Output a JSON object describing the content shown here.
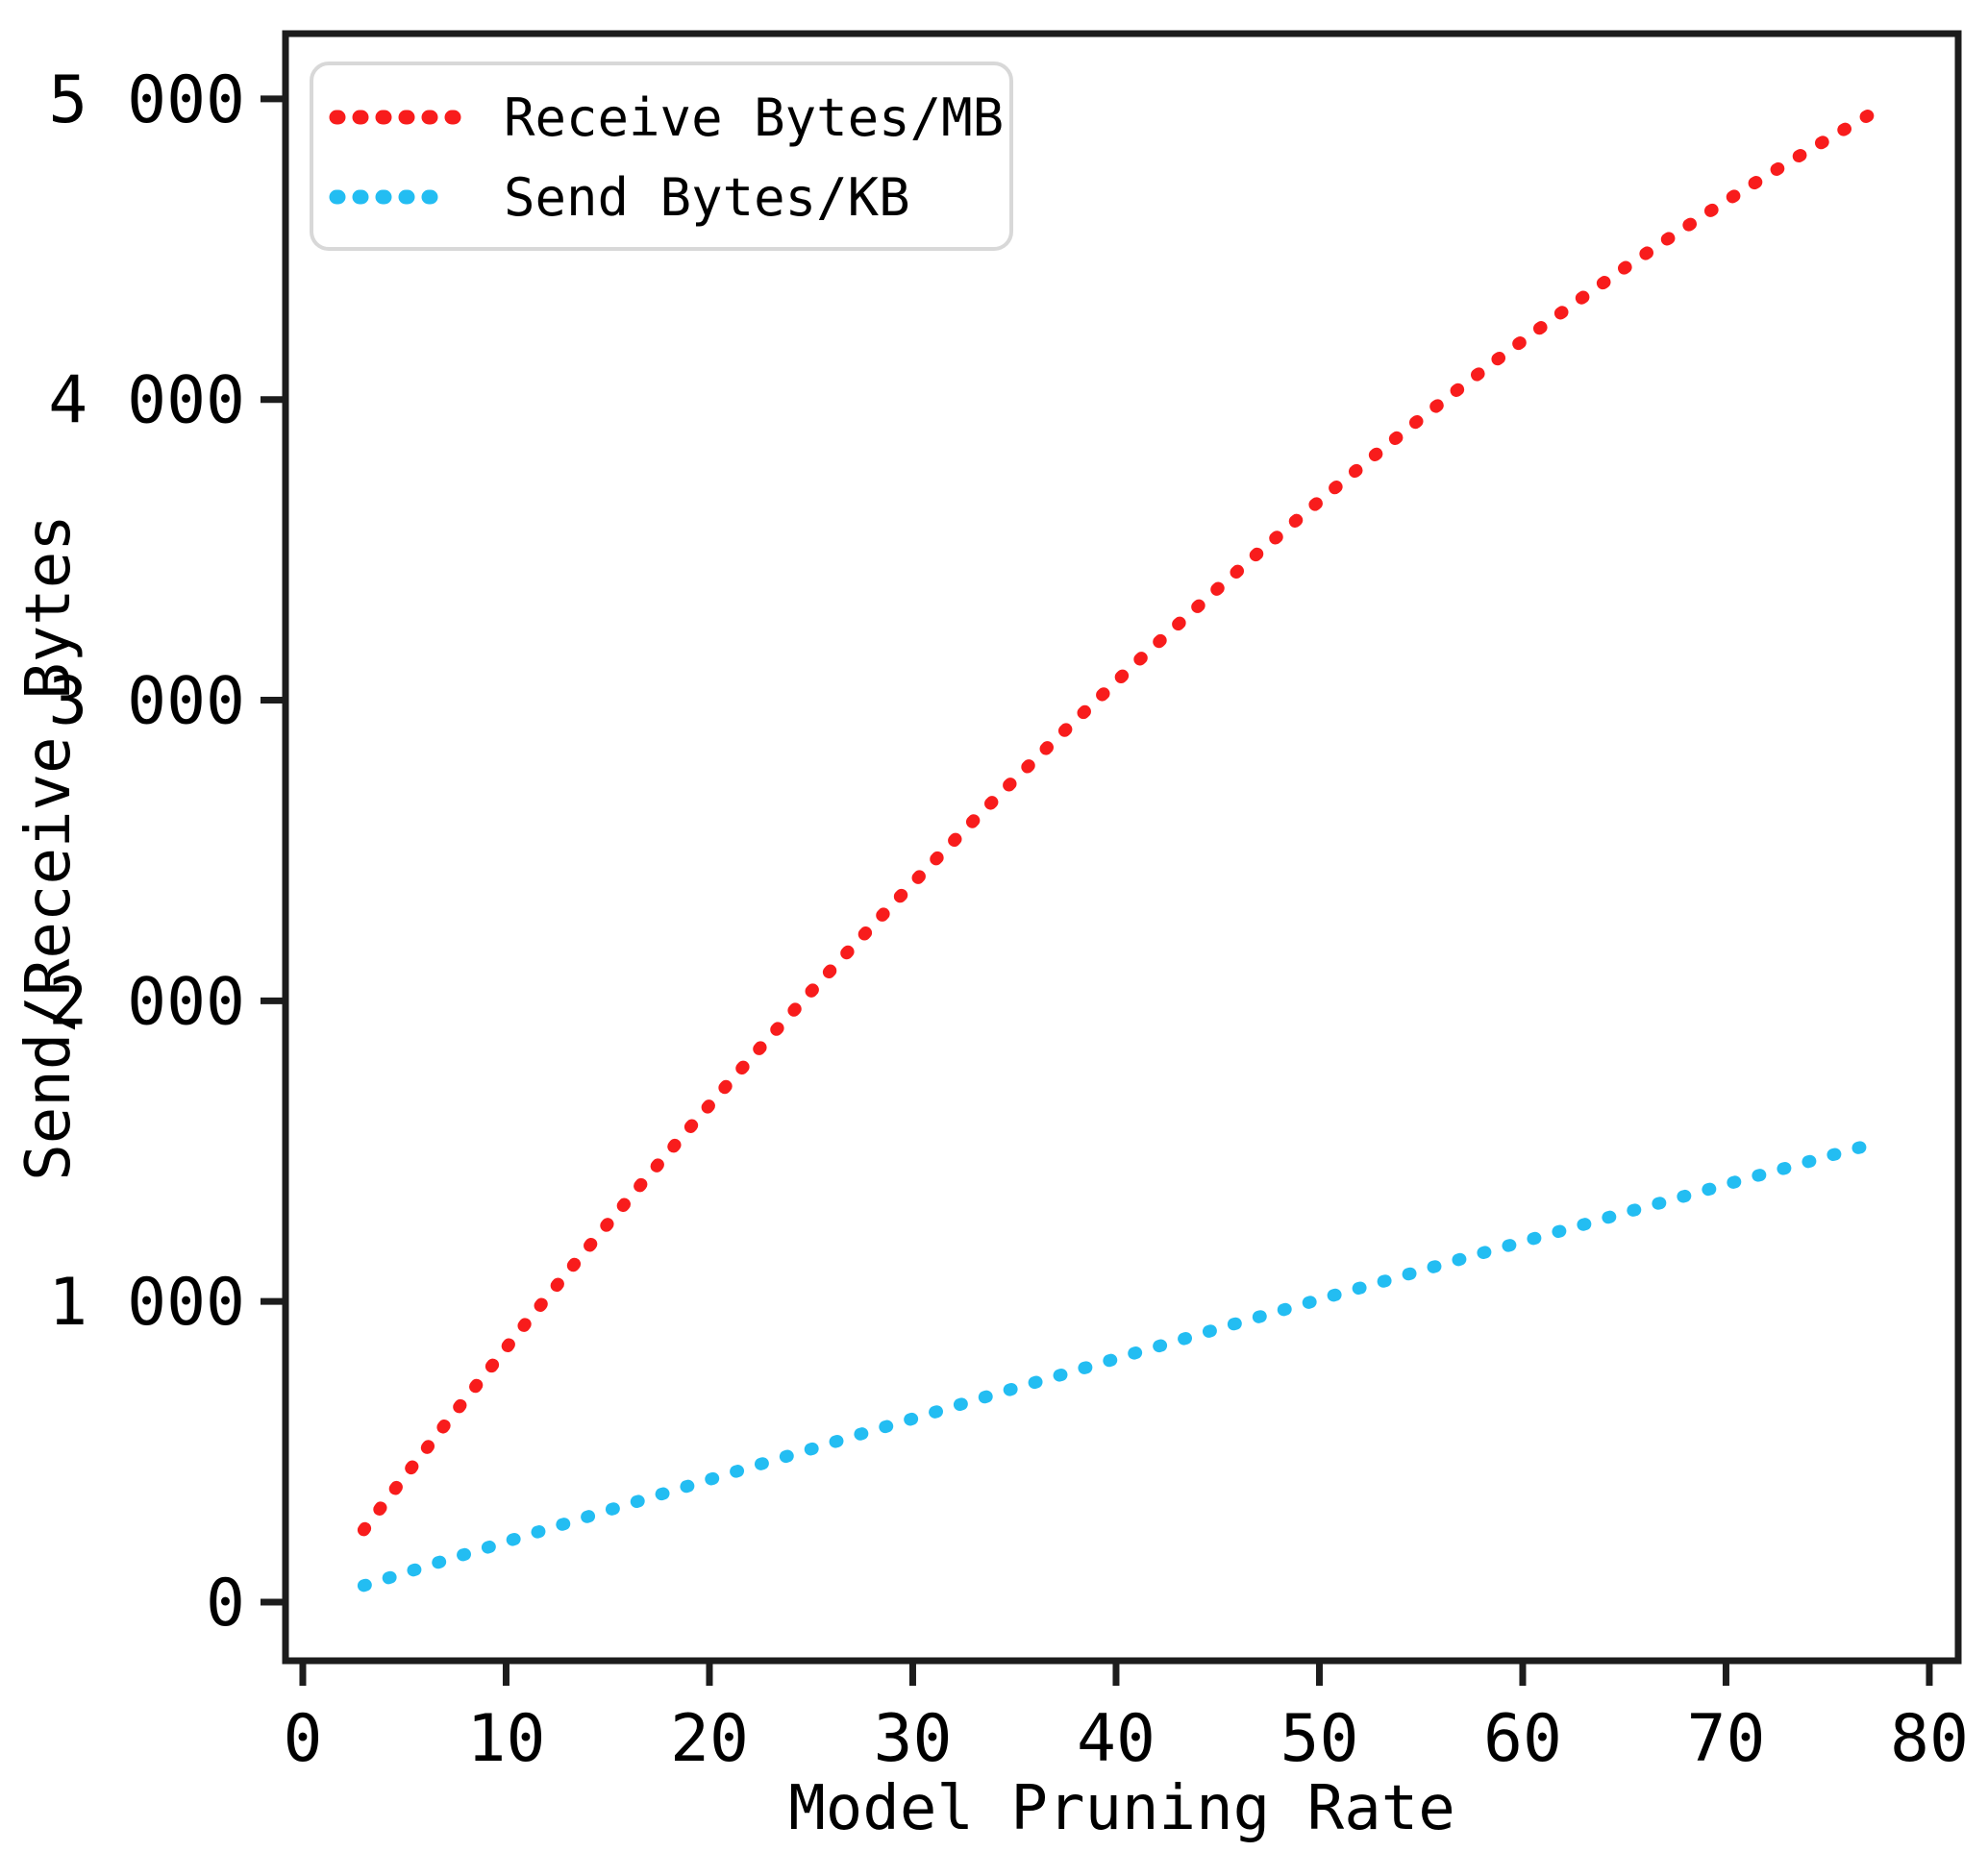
{
  "chart_data": {
    "type": "line",
    "title": "",
    "xlabel": "Model Pruning Rate",
    "ylabel": "Send/Receive Bytes",
    "xlim": [
      -0.85,
      81.42
    ],
    "ylim": [
      -195,
      5217
    ],
    "x_ticks": [
      0,
      10,
      20,
      30,
      40,
      50,
      60,
      70,
      80
    ],
    "x_tick_labels": [
      "0",
      "10",
      "20",
      "30",
      "40",
      "50",
      "60",
      "70",
      "80"
    ],
    "y_ticks": [
      0,
      1000,
      2000,
      3000,
      4000,
      5000
    ],
    "y_tick_labels": [
      "0",
      "1 000",
      "2 000",
      "3 000",
      "4 000",
      "5 000"
    ],
    "grid": false,
    "legend_position": "upper-left",
    "line_style": "dotted",
    "series": [
      {
        "name": "Receive Bytes/MB",
        "color": "#f81c1c",
        "style": "dotted",
        "x": [
          3,
          5,
          7,
          9,
          11,
          13,
          15,
          17,
          19,
          21,
          23,
          25,
          27,
          29,
          31,
          33,
          35,
          37,
          39,
          41,
          43,
          45,
          47,
          49,
          51,
          53,
          55,
          57,
          59,
          61,
          63,
          65,
          67,
          69,
          71,
          73,
          75,
          77
        ],
        "y": [
          240,
          417,
          590,
          760,
          930,
          1095,
          1258,
          1418,
          1575,
          1730,
          1882,
          2031,
          2177,
          2320,
          2461,
          2600,
          2735,
          2868,
          2997,
          3125,
          3249,
          3371,
          3490,
          3606,
          3719,
          3830,
          3938,
          4043,
          4146,
          4245,
          4342,
          4437,
          4528,
          4617,
          4703,
          4786,
          4866,
          4945
        ]
      },
      {
        "name": "Send Bytes/KB",
        "color": "#23bdf2",
        "style": "dotted",
        "x": [
          3,
          5,
          7,
          9,
          11,
          13,
          15,
          17,
          19,
          21,
          23,
          25,
          27,
          29,
          31,
          33,
          35,
          37,
          39,
          41,
          43,
          45,
          47,
          49,
          51,
          53,
          55,
          57,
          59,
          61,
          63,
          65,
          67,
          69,
          71,
          73,
          75,
          77
        ],
        "y": [
          55,
          97,
          139,
          180,
          222,
          263,
          305,
          346,
          387,
          428,
          469,
          509,
          550,
          590,
          630,
          671,
          711,
          750,
          790,
          830,
          869,
          909,
          948,
          987,
          1026,
          1064,
          1103,
          1142,
          1180,
          1218,
          1256,
          1295,
          1332,
          1370,
          1408,
          1445,
          1483,
          1520
        ]
      }
    ]
  }
}
